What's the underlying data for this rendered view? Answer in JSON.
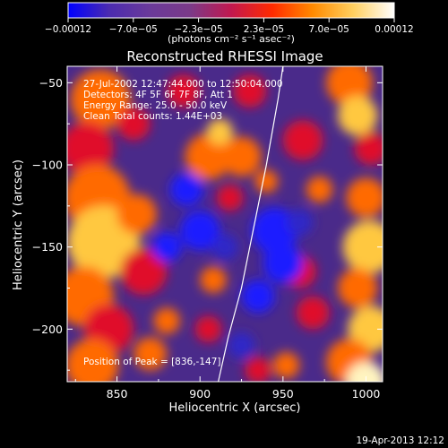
{
  "colorbar": {
    "tick_labels": [
      "−0.00012",
      "−7.0e−05",
      "−2.3e−05",
      "2.3e−05",
      "7.0e−05",
      "0.00012"
    ],
    "unit_label": "(photons cm⁻² s⁻¹ asec⁻²)",
    "colors": [
      "#0000ff",
      "#4b2bb0",
      "#6a3a9a",
      "#7b3a88",
      "#c2184f",
      "#ff2a00",
      "#ff8a00",
      "#ffd060",
      "#ffffff"
    ]
  },
  "chart_data": {
    "type": "heatmap",
    "title": "Reconstructed RHESSI Image",
    "xlabel": "Heliocentric X (arcsec)",
    "ylabel": "Heliocentric Y (arcsec)",
    "xlim": [
      820,
      1010
    ],
    "ylim": [
      -232,
      -40
    ],
    "x_ticks": [
      850,
      900,
      950,
      1000
    ],
    "x_tick_labels": [
      "850",
      "900",
      "950",
      "1000"
    ],
    "y_ticks": [
      -50,
      -100,
      -150,
      -200
    ],
    "y_tick_labels": [
      "−50",
      "−100",
      "−150",
      "−200"
    ],
    "colorbar_range": [
      -0.00012,
      0.00012
    ],
    "peak_position": [
      836,
      -147
    ],
    "annotations": [
      "27-Jul-2002 12:47:44.000 to 12:50:04.000",
      "Detectors: 4F 5F 6F 7F 8F, Att 1",
      "Energy Range: 25.0 - 50.0 keV",
      "Clean    Total counts: 1.44E+03"
    ],
    "peak_label": "Position of Peak = [836,-147]",
    "limb_line": [
      [
        911,
        -232
      ],
      [
        917,
        -205
      ],
      [
        925,
        -175
      ],
      [
        932,
        -140
      ],
      [
        940,
        -100
      ],
      [
        947,
        -60
      ],
      [
        950,
        -40
      ]
    ]
  },
  "footer": {
    "timestamp": "19-Apr-2013 12:12"
  }
}
